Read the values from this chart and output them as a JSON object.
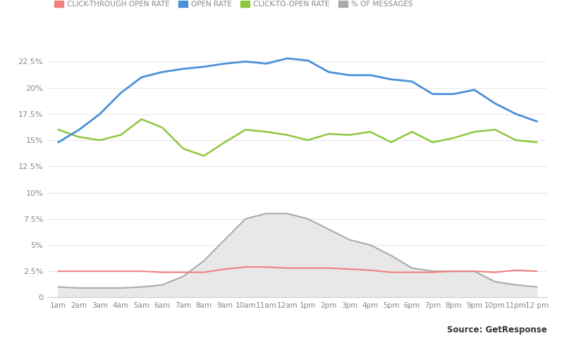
{
  "x_labels": [
    "1am",
    "2am",
    "3am",
    "4am",
    "5am",
    "6am",
    "7am",
    "8am",
    "9am",
    "10am",
    "11am",
    "12am",
    "1pm",
    "2pm",
    "3pm",
    "4pm",
    "5pm",
    "6pm",
    "7pm",
    "8pm",
    "9pm",
    "10pm",
    "11pm",
    "12 pm"
  ],
  "open_rate": [
    14.8,
    16.0,
    17.5,
    19.5,
    21.0,
    21.5,
    21.8,
    22.0,
    22.3,
    22.5,
    22.3,
    22.8,
    22.6,
    21.5,
    21.2,
    21.2,
    20.8,
    20.6,
    19.4,
    19.4,
    19.8,
    18.5,
    17.5,
    16.8
  ],
  "click_to_open_rate": [
    16.0,
    15.3,
    15.0,
    15.5,
    17.0,
    16.2,
    14.2,
    13.5,
    14.8,
    16.0,
    15.8,
    15.5,
    15.0,
    15.6,
    15.5,
    15.8,
    14.8,
    15.8,
    14.8,
    15.2,
    15.8,
    16.0,
    15.0,
    14.8
  ],
  "click_through_open_rate": [
    2.5,
    2.5,
    2.5,
    2.5,
    2.5,
    2.4,
    2.4,
    2.4,
    2.7,
    2.9,
    2.9,
    2.8,
    2.8,
    2.8,
    2.7,
    2.6,
    2.4,
    2.4,
    2.4,
    2.5,
    2.5,
    2.4,
    2.6,
    2.5
  ],
  "pct_messages": [
    1.0,
    0.9,
    0.9,
    0.9,
    1.0,
    1.2,
    2.0,
    3.5,
    5.5,
    7.5,
    8.0,
    8.0,
    7.5,
    6.5,
    5.5,
    5.0,
    4.0,
    2.8,
    2.5,
    2.5,
    2.5,
    1.5,
    1.2,
    1.0
  ],
  "open_rate_color": "#4a90d9",
  "click_to_open_rate_color": "#8dc63f",
  "click_through_open_rate_color": "#f08080",
  "pct_messages_color": "#aaaaaa",
  "pct_messages_fill": "#e8e8e8",
  "legend_labels": [
    "CLICK-THROUGH OPEN RATE",
    "OPEN RATE",
    "CLICK-TO-OPEN RATE",
    "% OF MESSAGES"
  ],
  "legend_colors": [
    "#f08080",
    "#4a90d9",
    "#8dc63f",
    "#aaaaaa"
  ],
  "source_text": "Source: GetResponse",
  "background_color": "#ffffff",
  "ytick_labels": [
    "0",
    "2.5%",
    "5%",
    "7.5%",
    "10%",
    "12.5%",
    "15%",
    "17.5%",
    "20%",
    "22.5%"
  ],
  "ytick_values": [
    0,
    2.5,
    5.0,
    7.5,
    10.0,
    12.5,
    15.0,
    17.5,
    20.0,
    22.5
  ]
}
